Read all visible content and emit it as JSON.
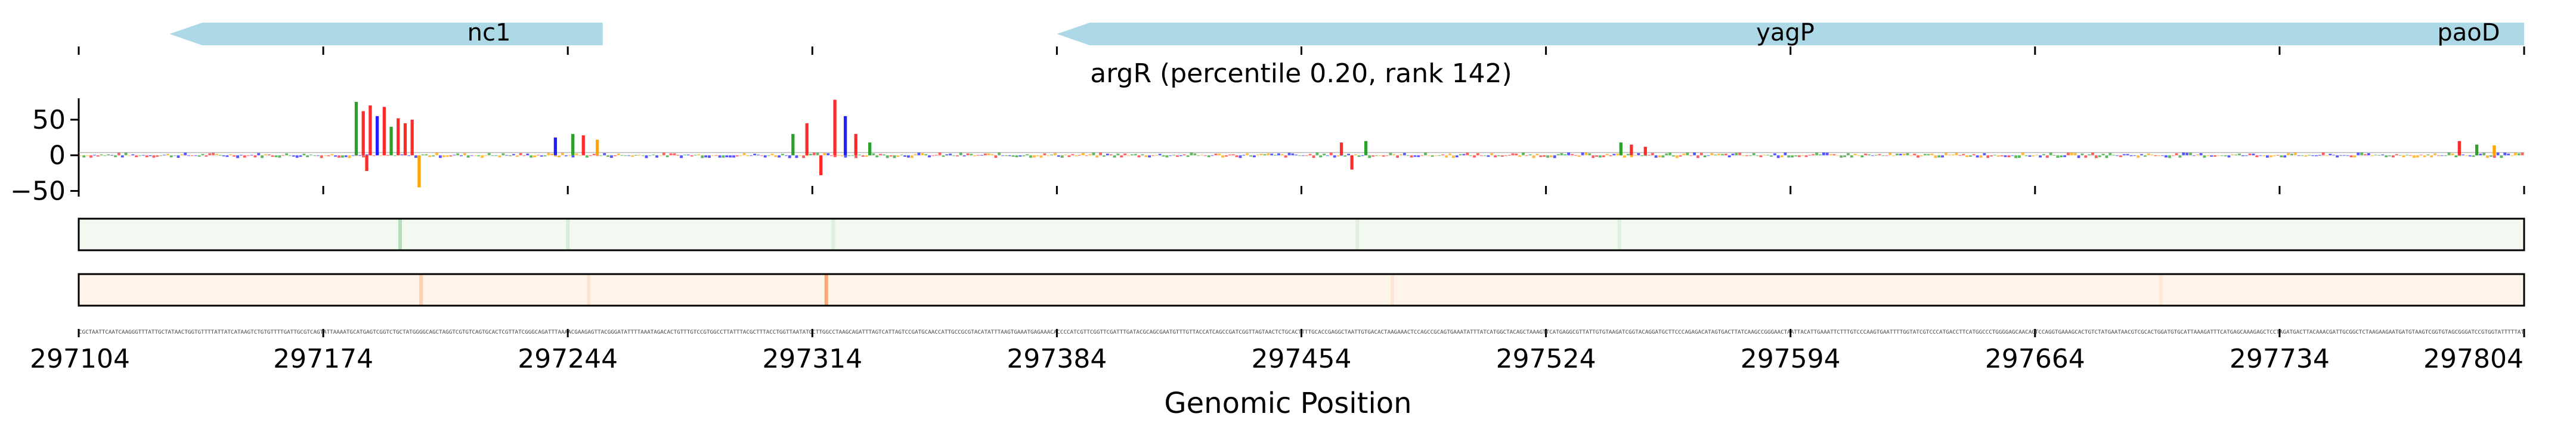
{
  "chart_data": [
    {
      "type": "gene_track",
      "genes": [
        {
          "name": "nc1",
          "start": 297130,
          "end": 297254,
          "strand": "-"
        },
        {
          "name": "yagP",
          "start": 297384,
          "end": 297804,
          "strand": "-"
        },
        {
          "name": "paoD",
          "start": 297804,
          "end": 297804,
          "strand": "-"
        }
      ],
      "xlim": [
        297104,
        297804
      ]
    },
    {
      "type": "bar",
      "title": "argR (percentile 0.20, rank 142)",
      "subtype": "sequence_logo_contribution",
      "ylim": [
        -58,
        80
      ],
      "yticks": [
        50,
        0,
        -50
      ],
      "ytick_labels": [
        "50",
        "0",
        "−50"
      ],
      "xlim": [
        297104,
        297804
      ],
      "nucleotide_colors": {
        "A": "#2ca02c",
        "C": "#1f1fff",
        "G": "#ffa500",
        "T": "#ff2a2a"
      },
      "peaks": [
        {
          "x": 297183,
          "value": 75,
          "base": "A"
        },
        {
          "x": 297185,
          "value": 62,
          "base": "T"
        },
        {
          "x": 297187,
          "value": 70,
          "base": "T"
        },
        {
          "x": 297189,
          "value": 55,
          "base": "C"
        },
        {
          "x": 297191,
          "value": 68,
          "base": "T"
        },
        {
          "x": 297193,
          "value": 40,
          "base": "A"
        },
        {
          "x": 297195,
          "value": 52,
          "base": "T"
        },
        {
          "x": 297197,
          "value": 45,
          "base": "T"
        },
        {
          "x": 297199,
          "value": 50,
          "base": "T"
        },
        {
          "x": 297201,
          "value": -45,
          "base": "G"
        },
        {
          "x": 297186,
          "value": -22,
          "base": "T"
        },
        {
          "x": 297240,
          "value": 25,
          "base": "C"
        },
        {
          "x": 297245,
          "value": 30,
          "base": "A"
        },
        {
          "x": 297248,
          "value": 28,
          "base": "T"
        },
        {
          "x": 297252,
          "value": 22,
          "base": "G"
        },
        {
          "x": 297308,
          "value": 30,
          "base": "A"
        },
        {
          "x": 297312,
          "value": 45,
          "base": "T"
        },
        {
          "x": 297316,
          "value": -28,
          "base": "T"
        },
        {
          "x": 297320,
          "value": 78,
          "base": "T"
        },
        {
          "x": 297323,
          "value": 55,
          "base": "C"
        },
        {
          "x": 297326,
          "value": 30,
          "base": "T"
        },
        {
          "x": 297330,
          "value": 18,
          "base": "A"
        },
        {
          "x": 297465,
          "value": 18,
          "base": "T"
        },
        {
          "x": 297468,
          "value": -20,
          "base": "T"
        },
        {
          "x": 297472,
          "value": 20,
          "base": "A"
        },
        {
          "x": 297545,
          "value": 18,
          "base": "A"
        },
        {
          "x": 297548,
          "value": 15,
          "base": "T"
        },
        {
          "x": 297552,
          "value": 12,
          "base": "T"
        },
        {
          "x": 297785,
          "value": 20,
          "base": "T"
        },
        {
          "x": 297790,
          "value": 15,
          "base": "A"
        },
        {
          "x": 297795,
          "value": 14,
          "base": "G"
        }
      ]
    },
    {
      "type": "heatmap",
      "track": "forward",
      "colormap": "Greens",
      "xlim": [
        297104,
        297804
      ],
      "hotspots": [
        {
          "x": 297196,
          "intensity": 0.35
        },
        {
          "x": 297244,
          "intensity": 0.15
        },
        {
          "x": 297320,
          "intensity": 0.12
        },
        {
          "x": 297470,
          "intensity": 0.1
        },
        {
          "x": 297545,
          "intensity": 0.1
        }
      ]
    },
    {
      "type": "heatmap",
      "track": "reverse",
      "colormap": "Oranges",
      "xlim": [
        297104,
        297804
      ],
      "hotspots": [
        {
          "x": 297318,
          "intensity": 0.55
        },
        {
          "x": 297202,
          "intensity": 0.25
        },
        {
          "x": 297250,
          "intensity": 0.12
        },
        {
          "x": 297480,
          "intensity": 0.1
        },
        {
          "x": 297700,
          "intensity": 0.08
        }
      ]
    },
    {
      "type": "axis",
      "xlabel": "Genomic Position",
      "xticks": [
        297104,
        297174,
        297244,
        297314,
        297384,
        297454,
        297524,
        297594,
        297664,
        297734,
        297804
      ],
      "xtick_labels": [
        "297104",
        "297174",
        "297244",
        "297314",
        "297384",
        "297454",
        "297524",
        "297594",
        "297664",
        "297734",
        "297804"
      ],
      "sequence": "CGCTAATTCAATCAAGGGTTTATTGCTATAACTGGTGTTTTATTATCATAAGTCTGTGTTTTGATTGCGTCAGTATTAAAATGCATGAGTCGGTCTGCTATGGGGCAGCTAGGTCGTGTCAGTGCACTCGTTATCGGGCAGATTTAAAACGAAGAGTTACGGGATATTTTAAATAGACACTGTTTGTCCGTGGCCTTATTTACGCTTTACCTGGTTAATATGCTTGGCCTAAGCAGATTTAGTCATTAGTCCGATGCAACCATTGCCGCGTACATATTTAAGTGAAATGAGAAACACCCCATCGTTCGGTTCGATTTGATACGCAGCGAATGTTTGTTACCATCAGCCGATCGGTTAGTAACTCTGCACTTTTGCACCGAGGCTAATTGTGACACTAAGAAACTCCAGCCGCAGTGAAATATTTATCATGGCTACAGCTAAAGTTCATGAGGCGTTATTGTGTAAGATCGGTACAGGATGCTTCCCAGAGACATAGTGACTTATCAAGCCGGGAACTAATTACATTGAAATTCTTTGTCCCAAGTGAATTTTGGTATCGTCCCATGACCTTCATGGCCCTGGGGAGCAACAGTCCAGGTGAAAGCACTGTCTATGAATAACGTCGCACTGGATGTGCATTAAAGATTTCATGAGCAAAGAGCTCCTAGATGACTTACAAACGATTGCGGCTCTAAGAAGAATGATGTAAGTCGGTGTAGCGGGATCCGTGGTATTTTTAT"
    }
  ]
}
